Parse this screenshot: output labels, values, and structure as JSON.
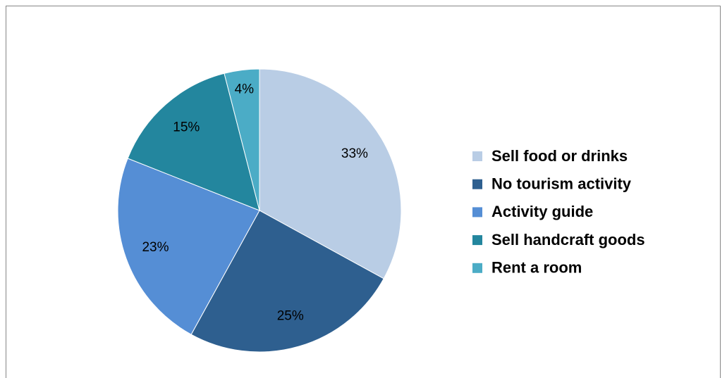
{
  "chart_data": {
    "type": "pie",
    "categories": [
      "Sell food or drinks",
      "No tourism activity",
      "Activity guide",
      "Sell handcraft goods",
      "Rent a room"
    ],
    "values": [
      33,
      25,
      23,
      15,
      4
    ],
    "value_labels": [
      "33%",
      "25%",
      "23%",
      "15%",
      "4%"
    ],
    "colors": [
      "#b9cde5",
      "#2e5f8f",
      "#558ed5",
      "#23869e",
      "#4bacc6"
    ],
    "legend": "right"
  }
}
